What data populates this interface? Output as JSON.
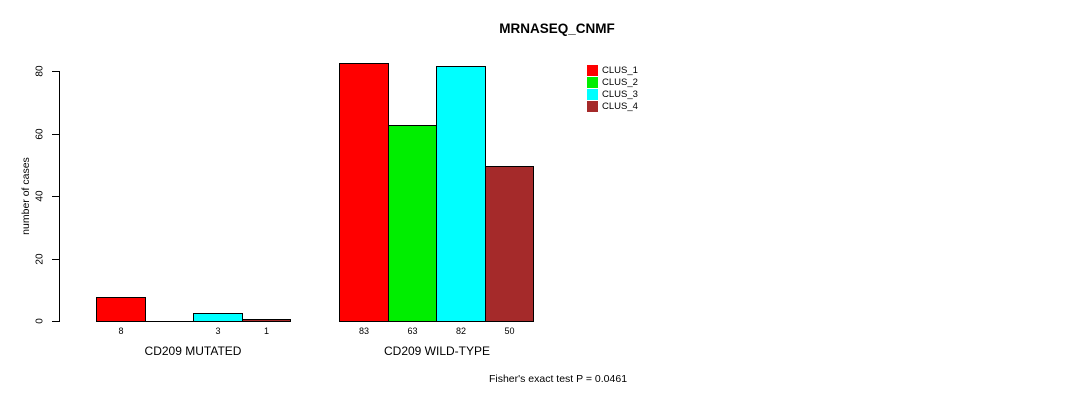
{
  "chart_data": {
    "type": "bar",
    "title": "MRNASEQ_CNMF",
    "ylabel": "number of cases",
    "xlabel": "",
    "ylim": [
      0,
      80
    ],
    "yticks": [
      0,
      20,
      40,
      60,
      80
    ],
    "grid": false,
    "legend_position": "right",
    "categories": [
      "CD209 MUTATED",
      "CD209 WILD-TYPE"
    ],
    "series": [
      {
        "name": "CLUS_1",
        "color": "#FF0000",
        "values": [
          8,
          83
        ]
      },
      {
        "name": "CLUS_2",
        "color": "#00EE00",
        "values": [
          0,
          63
        ]
      },
      {
        "name": "CLUS_3",
        "color": "#00FFFF",
        "values": [
          3,
          82
        ]
      },
      {
        "name": "CLUS_4",
        "color": "#A52A2A",
        "values": [
          1,
          50
        ]
      }
    ],
    "bar_value_labels": [
      "8",
      "3",
      "1",
      "83",
      "63",
      "82",
      "50"
    ],
    "annotation": "Fisher's exact test P = 0.0461"
  }
}
